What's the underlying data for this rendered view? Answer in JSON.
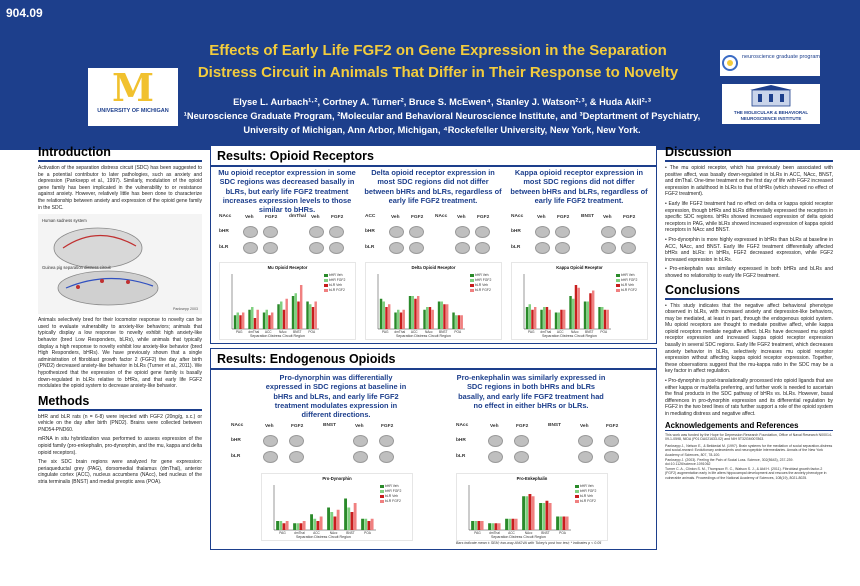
{
  "header": {
    "poster_id": "904.09",
    "title_line1": "Effects of Early Life FGF2 on Gene Expression in the Separation",
    "title_line2": "Distress Circuit in Animals That Differ in Their Response to Novelty",
    "authors_line1": "Elyse L. Aurbach¹·², Cortney A. Turner², Bruce S. McEwen⁴, Stanley J. Watson²·³, & Huda Akil²·³",
    "authors_line2": "¹Neuroscience Graduate Program, ²Molecular and Behavioral Neuroscience Institute, and ³Deptartment of Psychiatry,",
    "authors_line3": "University of Michigan, Ann Arbor, Michigan, ⁴Rockefeller University, New York, New York.",
    "umich_logo_letter": "M",
    "umich_logo_text": "UNIVERSITY OF MICHIGAN",
    "ngp_logo_text": "neuroscience graduate program",
    "mbni_logo_text": "THE MOLECULAR & BEHAVIORAL NEUROSCIENCE INSTITUTE"
  },
  "introduction": {
    "heading": "Introduction",
    "p1": "Activation of the separation distress circuit (SDC) has been suggested to be a potential contributor to later pathologies, such as anxiety and depression (Panksepp et al., 1997). Similarly, modulation of the opioid gene family has been implicated in the vulnerability to or resistance against anxiety. However, relatively little has been done to characterize the relationship between anxiety and expression of the opioid gene family in the SDC.",
    "figure_label_top": "Human sadness system",
    "figure_label_mid": "Guinea pig separation distress circuit",
    "figure_credit": "Panksepp 2003",
    "p2": "Animals selectively bred for their locomotor response to novelty can be used to evaluate vulnerability to anxiety-like behaviors; animals that typically display a low response to novelty exhibit high anxiety-like behavior (bred Low Responders, bLRs), while animals that typically display a high response to novelty exhibit low anxiety-like behavior (bred High Responders, bHRs). We have previously shown that a single administration of fibroblast growth factor 2 (FGF2) the day after birth (PND2) decreased anxiety-like behavior in bLRs (Turner et al., 2011). We hypothesized that the expression of the opioid gene family is basally down-regulated in bLRs relative to bHRs, and that early life FGF2 modulates the opioid system to decrease anxiety-like behavior."
  },
  "methods": {
    "heading": "Methods",
    "p1": "bHR and bLR rats (n = 6-8) were injected with FGF2 (20ng/g, s.c.) or vehicle on the day after birth (PND2). Brains were collected between PND54-PND60.",
    "p2": "mRNA in situ hybridization was performed to assess expression of the opioid family (pro-enkephalin, pro-dynorphin, and the mu, kappa and delta opioid receptors).",
    "p3": "The six SDC brain regions were analyzed for gene expression: periaqueductal grey (PAG), dorsomedial thalamus (dmThal), anterior cingulate cortex (ACC), nucleus accumbens (NAcc), bed nucleus of the stria terminalis (BNST) and medial preoptic area (POA)."
  },
  "results_opioid": {
    "heading": "Results: Opioid Receptors",
    "panel1": "Mu opioid receptor expression in some SDC regions was decreased basally in bLRs, but early life FGF2 treatment increases expression levels to those similar to bHRs.",
    "panel2": "Delta opioid receptor expression in most SDC regions did not differ between bHRs and bLRs, regardless of early life FGF2 treatment.",
    "panel3": "Kappa opioid receptor expression in most SDC regions did not differ between bHRs and bLRs, regardless of early life FGF2 treatment.",
    "grid1": {
      "r1": "NAcc",
      "r2": "dmThal",
      "c1": "Veh",
      "c2": "FGF2",
      "c3": "Veh",
      "c4": "FGF2",
      "row1": "bHR",
      "row2": "bLR"
    },
    "grid2": {
      "r1": "ACC",
      "r2": "NAcc",
      "c1": "Veh",
      "c2": "FGF2",
      "c3": "Veh",
      "c4": "FGF2",
      "row1": "bHR",
      "row2": "bLR"
    },
    "grid3": {
      "r1": "NAcc",
      "r2": "BNST",
      "c1": "Veh",
      "c2": "FGF2",
      "c3": "Veh",
      "c4": "FGF2",
      "row1": "bHR",
      "row2": "bLR"
    },
    "chart1_title": "Mu Opioid Receptor",
    "chart2_title": "Delta Opioid Receptor",
    "chart3_title": "Kappa Opioid Receptor",
    "xaxis_label": "Separation Distress Circuit Region",
    "yaxis_label": "Optical Density"
  },
  "results_endogenous": {
    "heading": "Results: Endogenous Opioids",
    "panel1": "Pro-dynorphin was differentially expressed in SDC regions at baseline in bHRs and bLRs, and early life FGF2 treatment modulates expression in different directions.",
    "panel2": "Pro-enkephalin was similarly expressed in SDC regions in both bHRs and bLRs basally, and early life FGF2 treatment had no effect in either bHRs or bLRs.",
    "grid1": {
      "r1": "NAcc",
      "r2": "BNST",
      "c1": "Veh",
      "c2": "FGF2",
      "c3": "Veh",
      "c4": "FGF2",
      "row1": "bHR",
      "row2": "bLR"
    },
    "grid2": {
      "r1": "NAcc",
      "r2": "BNST",
      "c1": "Veh",
      "c2": "FGF2",
      "c3": "Veh",
      "c4": "FGF2",
      "row1": "bHR",
      "row2": "bLR"
    },
    "chart1_title": "Pro-Dynorphin",
    "chart2_title": "Pro-Enkephalin",
    "xaxis_label": "Separation Distress Circuit Region",
    "footnote": "Bars indicate mean ± SEM; two-way ANOVA with Tukey's post hoc test; * indicates p < 0.05"
  },
  "discussion": {
    "heading": "Discussion",
    "b1": "• The mu opioid receptor, which has previously been associated with positive affect, was basally down-regulated in bLRs in ACC, NAcc, BNST, and dmThal. One-time treatment on the first day of life with FGF2 increased expression in adulthood in bLRs to that of bHRs (which showed no effect of FGF2 treatment).",
    "b2": "• Early life FGF2 treatment had no effect on delta or kappa opioid receptor expression, though bHRs and bLRs differentially expressed the receptors in specific SDC regions. bHRs showed increased expression of delta opioid receptors in PAG, while bLRs showed increased expression of kappa opioid receptors in NAcc and BNST.",
    "b3": "• Pro-dynorphin is more highly expressed in bHRs than bLRs at baseline in ACC, NAcc, and BNST. Early life FGF2 treatment differentially affected bHRs and bLRs: in bHRs, FGF2 decreased expression, while FGF2 increased expression in bLRs.",
    "b4": "• Pro-enkephalin was similarly expressed in both bHRs and bLRs and showed no relationship to early life FGF2 treatment."
  },
  "conclusions": {
    "heading": "Conclusions",
    "b1": "• This study indicates that the negative affect behavioral phenotype observed in bLRs, with increased anxiety and depression-like behaviors, may be mediated, at least in part, through the endogenous opioid system. Mu opioid receptors are thought to mediate positive affect, while kappa opioid receptors mediate negative affect. bLRs have decreased mu opioid receptor expression and increased kappa opioid receptor expression basally in several SDC regions. Early life FGF2 treatment, which decreases anxiety behavior in bLRs, selectively increases mu opioid receptor expression without affecting kappa opioid receptor expression. Together, these observations suggest that the mu-kappa ratio in the SDC may be a key factor in affect regulation.",
    "b2": "• Pro-dynorphin is post-translationally processed into opioid ligands that are either kappa or mu/delta preferring, and further work is needed to ascertain the final products in the SDC pathway of bHRs vs. bLRs. However, basal differences in pro-dynorphin expression and its differential regulation by FGF2 in the two bred lines of rats further support a role of the opioid system in mediating distress and negative affect."
  },
  "acknowledgements": {
    "heading": "Acknowledgements and References",
    "text": "This work was funded by the Hope for Depression Research Foundation, Office of Naval Research N00014-09-1-0598, NIDA (P01 DA021633-02) and NIH 5T32GM007863.",
    "ref1": "Panksepp J., Nelson E., & Bekkedal M. (1997). Brain systems for the mediation of social separation-distress and social-reward: Evolutionary antecedents and neuropeptide intermediaries. Annals of the New York Academy of Sciences, 807, 78-100.",
    "ref2": "Panksepp J. (2003). Feeling the Pain of Social Loss. Science, 302(5643), 237-239. doi:10.1126/science.1091062",
    "ref3": "Turner C. A., Clinton S. M., Thompson R. C., Watson S. J., & Akil H. (2011). Fibroblast growth factor-2 (FGF2) augmentation early in life alters hippocampal development and rescues the anxiety phenotype in vulnerable animals. Proceedings of the National Academy of Sciences, 108(19), 8021-8025."
  },
  "legend": {
    "s1": "bHR Veh",
    "s2": "bHR FGF2",
    "s3": "bLR Veh",
    "s4": "bLR FGF2"
  },
  "colors": {
    "header": "#1d3f8c",
    "title": "#f3cc3d",
    "panel_title": "#1d3f8c",
    "bHR_Veh": "#2a8a2a",
    "bHR_FGF2": "#7fd07f",
    "bLR_Veh": "#c81e1e",
    "bLR_FGF2": "#f08080"
  },
  "chart_data": [
    {
      "type": "bar",
      "title": "Mu Opioid Receptor",
      "categories": [
        "PAG",
        "dmThal",
        "ACC",
        "NAcc",
        "BNST",
        "POA"
      ],
      "series": [
        {
          "name": "bHR Veh",
          "values": [
            0.05,
            0.07,
            0.06,
            0.09,
            0.12,
            0.1
          ]
        },
        {
          "name": "bHR FGF2",
          "values": [
            0.06,
            0.08,
            0.07,
            0.1,
            0.13,
            0.09
          ]
        },
        {
          "name": "bLR Veh",
          "values": [
            0.05,
            0.04,
            0.05,
            0.07,
            0.1,
            0.08
          ]
        },
        {
          "name": "bLR FGF2",
          "values": [
            0.06,
            0.07,
            0.06,
            0.11,
            0.16,
            0.1
          ]
        }
      ],
      "ylim": [
        0,
        0.2
      ]
    },
    {
      "type": "bar",
      "title": "Delta Opioid Receptor",
      "categories": [
        "PAG",
        "dmThal",
        "ACC",
        "NAcc",
        "BNST",
        "POA"
      ],
      "series": [
        {
          "name": "bHR Veh",
          "values": [
            0.11,
            0.06,
            0.12,
            0.07,
            0.1,
            0.06
          ]
        },
        {
          "name": "bHR FGF2",
          "values": [
            0.1,
            0.07,
            0.12,
            0.08,
            0.1,
            0.05
          ]
        },
        {
          "name": "bLR Veh",
          "values": [
            0.08,
            0.06,
            0.11,
            0.08,
            0.09,
            0.05
          ]
        },
        {
          "name": "bLR FGF2",
          "values": [
            0.09,
            0.07,
            0.12,
            0.07,
            0.09,
            0.05
          ]
        }
      ],
      "ylim": [
        0,
        0.2
      ]
    },
    {
      "type": "bar",
      "title": "Kappa Opioid Receptor",
      "categories": [
        "PAG",
        "dmThal",
        "ACC",
        "NAcc",
        "BNST",
        "POA"
      ],
      "series": [
        {
          "name": "bHR Veh",
          "values": [
            0.08,
            0.07,
            0.06,
            0.12,
            0.1,
            0.08
          ]
        },
        {
          "name": "bHR FGF2",
          "values": [
            0.09,
            0.08,
            0.06,
            0.11,
            0.1,
            0.08
          ]
        },
        {
          "name": "bLR Veh",
          "values": [
            0.07,
            0.08,
            0.07,
            0.16,
            0.13,
            0.07
          ]
        },
        {
          "name": "bLR FGF2",
          "values": [
            0.08,
            0.07,
            0.07,
            0.15,
            0.14,
            0.07
          ]
        }
      ],
      "ylim": [
        0,
        0.2
      ]
    },
    {
      "type": "bar",
      "title": "Pro-Dynorphin",
      "categories": [
        "PAG",
        "dmThal",
        "ACC",
        "NAcc",
        "BNST",
        "POA"
      ],
      "series": [
        {
          "name": "bHR Veh",
          "values": [
            0.04,
            0.03,
            0.07,
            0.1,
            0.14,
            0.05
          ]
        },
        {
          "name": "bHR FGF2",
          "values": [
            0.04,
            0.03,
            0.05,
            0.08,
            0.1,
            0.05
          ]
        },
        {
          "name": "bLR Veh",
          "values": [
            0.03,
            0.03,
            0.04,
            0.06,
            0.08,
            0.04
          ]
        },
        {
          "name": "bLR FGF2",
          "values": [
            0.04,
            0.04,
            0.06,
            0.09,
            0.12,
            0.05
          ]
        }
      ],
      "ylim": [
        0,
        0.2
      ]
    },
    {
      "type": "bar",
      "title": "Pro-Enkephalin",
      "categories": [
        "PAG",
        "dmThal",
        "ACC",
        "NAcc",
        "BNST",
        "POA"
      ],
      "series": [
        {
          "name": "bHR Veh",
          "values": [
            0.04,
            0.03,
            0.05,
            0.15,
            0.12,
            0.06
          ]
        },
        {
          "name": "bHR FGF2",
          "values": [
            0.04,
            0.03,
            0.05,
            0.15,
            0.12,
            0.06
          ]
        },
        {
          "name": "bLR Veh",
          "values": [
            0.04,
            0.03,
            0.05,
            0.16,
            0.13,
            0.06
          ]
        },
        {
          "name": "bLR FGF2",
          "values": [
            0.04,
            0.03,
            0.05,
            0.15,
            0.12,
            0.06
          ]
        }
      ],
      "ylim": [
        0,
        0.2
      ]
    }
  ]
}
